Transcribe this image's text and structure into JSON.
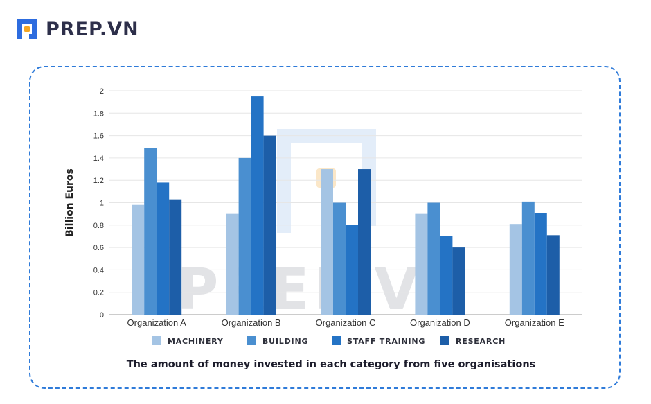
{
  "brand": {
    "name": "PREP.VN",
    "logo_icon": "prep-logo-icon",
    "colors": {
      "primary": "#2d6cdf",
      "accent": "#f4a623",
      "text": "#2d2f4a"
    }
  },
  "watermark": {
    "text": "PREP.VN"
  },
  "chart_data": {
    "type": "bar",
    "title": "The amount of  money invested in each category from five organisations",
    "ylabel": "Billion Euros",
    "xlabel": "",
    "ylim": [
      0,
      2
    ],
    "yticks": [
      "0",
      "0.2",
      "0.4",
      "0.6",
      "0.8",
      "1",
      "1.2",
      "1.4",
      "1.6",
      "1.8",
      "2"
    ],
    "grid": true,
    "legend_position": "bottom",
    "categories": [
      "Organization A",
      "Organization B",
      "Organization C",
      "Organization D",
      "Organization E"
    ],
    "series": [
      {
        "name": "MACHINERY",
        "color": "#a4c4e4",
        "values": [
          0.98,
          0.9,
          1.3,
          0.9,
          0.81
        ]
      },
      {
        "name": "BUILDING",
        "color": "#4a8fd0",
        "values": [
          1.49,
          1.4,
          1.0,
          1.0,
          1.01
        ]
      },
      {
        "name": "STAFF TRAINING",
        "color": "#2473c5",
        "values": [
          1.18,
          1.95,
          0.8,
          0.7,
          0.91
        ]
      },
      {
        "name": "RESEARCH",
        "color": "#1d5ea8",
        "values": [
          1.03,
          1.6,
          1.3,
          0.6,
          0.71
        ]
      }
    ]
  }
}
